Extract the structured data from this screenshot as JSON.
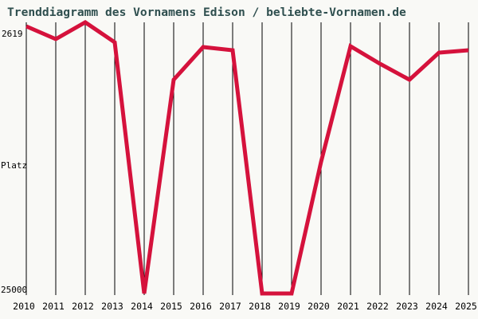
{
  "page": {
    "title": "Trenddiagramm des Vornamens Edison / beliebte-Vornamen.de",
    "background": "#f9f9f6"
  },
  "y_axis": {
    "top_label": "2619",
    "mid_label": "Platz",
    "bottom_label": "25000"
  },
  "colors": {
    "line": "#d5123c",
    "title_text": "#2f4f4f",
    "axis_text": "#000000",
    "gridline": "#000000"
  },
  "chart_data": {
    "type": "line",
    "title": "Trenddiagramm des Vornamens Edison / beliebte-Vornamen.de",
    "xlabel": "",
    "ylabel": "Platz",
    "categories": [
      "2010",
      "2011",
      "2012",
      "2013",
      "2014",
      "2015",
      "2016",
      "2017",
      "2018",
      "2019",
      "2020",
      "2021",
      "2022",
      "2023",
      "2024",
      "2025"
    ],
    "values": [
      2950,
      4000,
      2619,
      4265,
      25000,
      7360,
      4660,
      4920,
      25000,
      25000,
      14140,
      4595,
      6040,
      7360,
      5120,
      4920
    ],
    "ylim": [
      2619,
      25000
    ],
    "y_inverted": true,
    "y_tick_labels": [
      "2619",
      "25000"
    ],
    "grid": "vertical-only",
    "legend": "none"
  }
}
